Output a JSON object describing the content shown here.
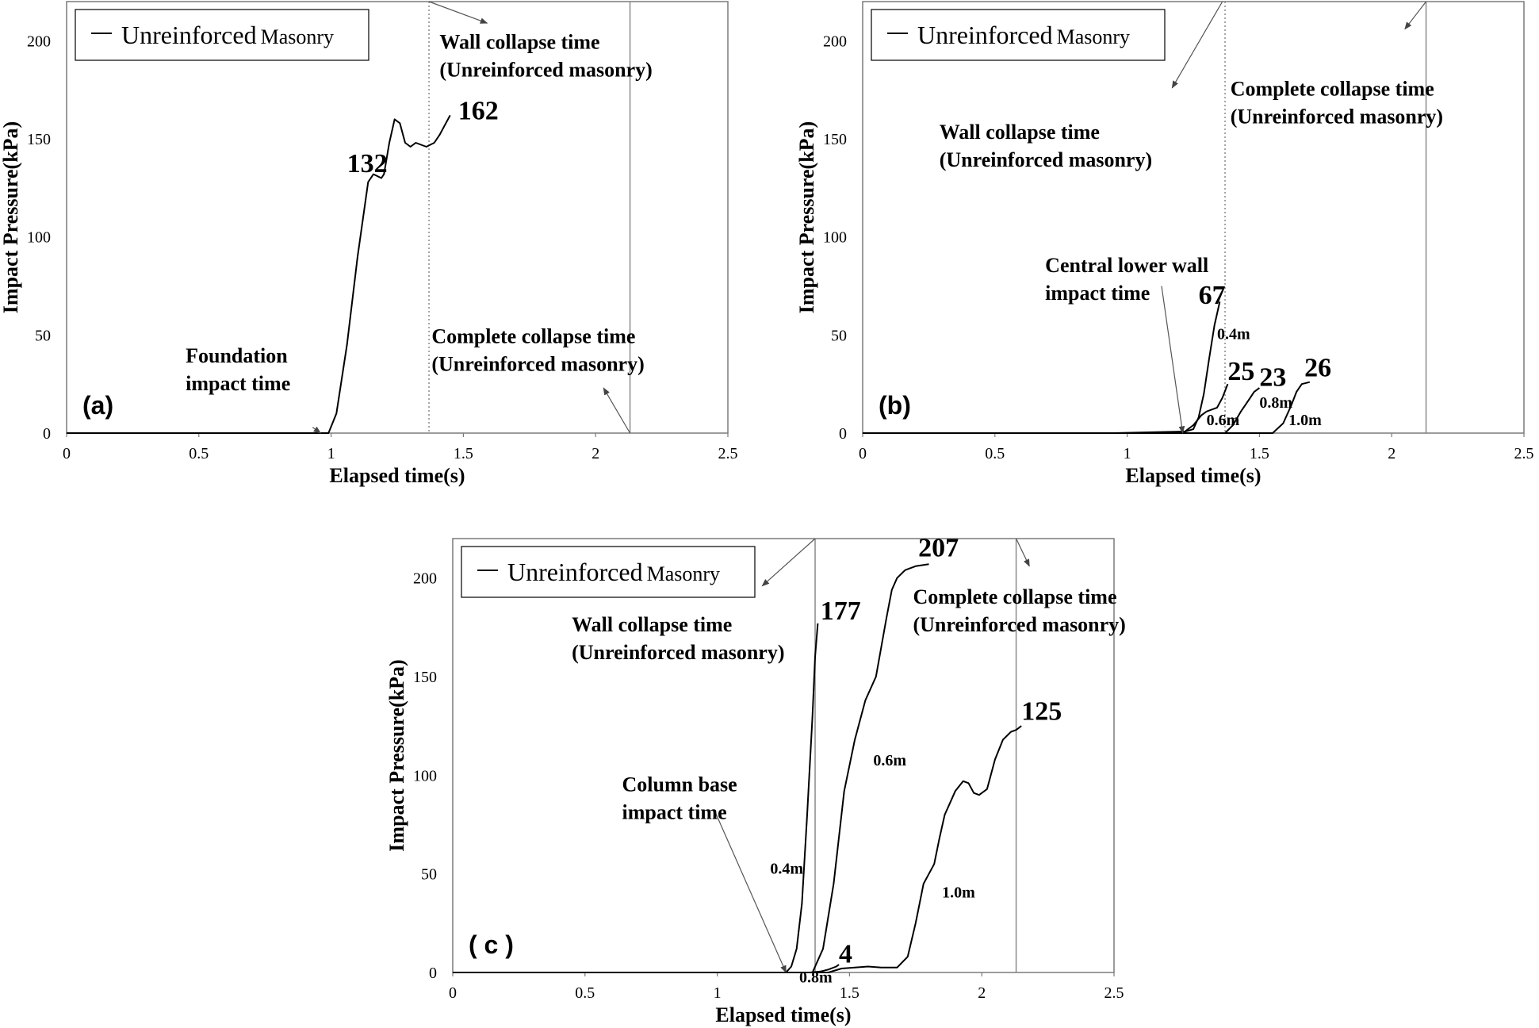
{
  "chart_data": [
    {
      "type": "line",
      "panel": "(a)",
      "xlabel": "Elapsed time(s)",
      "ylabel": "Impact Pressure(kPa)",
      "xlim": [
        0,
        2.5
      ],
      "ylim": [
        0,
        220
      ],
      "xticks": [
        "0",
        "0.5",
        "1",
        "1.5",
        "2",
        "2.5"
      ],
      "yticks": [
        "0",
        "50",
        "100",
        "150",
        "200"
      ],
      "legend": {
        "line1": "Unreinforced",
        "line2": "Masonry",
        "position": "top-left"
      },
      "grid": false,
      "series": [
        {
          "name": "",
          "x": [
            0,
            0.95,
            0.99,
            1.02,
            1.06,
            1.1,
            1.14,
            1.16,
            1.19,
            1.2,
            1.22,
            1.24,
            1.26,
            1.28,
            1.3,
            1.32,
            1.34,
            1.36,
            1.39,
            1.41,
            1.43,
            1.45
          ],
          "y": [
            0,
            0,
            0,
            10,
            45,
            90,
            128,
            132,
            130,
            132,
            148,
            160,
            158,
            148,
            146,
            148,
            147,
            146,
            148,
            152,
            157,
            162
          ]
        }
      ],
      "vlines": [
        {
          "x": 1.37,
          "style": "dotted"
        },
        {
          "x": 2.13,
          "style": "solid"
        }
      ],
      "value_labels": [
        {
          "text": "132",
          "x": 1.06,
          "y": 133
        },
        {
          "text": "162",
          "x": 1.48,
          "y": 160
        }
      ],
      "annotations": [
        {
          "lines": [
            "Wall collapse time",
            "(Unreinforced masonry)"
          ],
          "x": 1.41,
          "y": 196
        },
        {
          "lines": [
            "Foundation",
            "impact time"
          ],
          "x": 0.45,
          "y": 36
        },
        {
          "lines": [
            "Complete collapse time",
            "(Unreinforced masonry)"
          ],
          "x": 1.38,
          "y": 46
        }
      ],
      "arrows": [
        {
          "from": [
            1.37,
            220
          ],
          "to": [
            1.59,
            209
          ]
        },
        {
          "from": [
            0.93,
            3
          ],
          "to": [
            0.96,
            0
          ]
        },
        {
          "from": [
            2.13,
            0
          ],
          "to": [
            2.03,
            23
          ]
        }
      ]
    },
    {
      "type": "line",
      "panel": "(b)",
      "xlabel": "Elapsed time(s)",
      "ylabel": "Impact Pressure(kPa)",
      "xlim": [
        0,
        2.5
      ],
      "ylim": [
        0,
        220
      ],
      "xticks": [
        "0",
        "0.5",
        "1",
        "1.5",
        "2",
        "2.5"
      ],
      "yticks": [
        "0",
        "50",
        "100",
        "150",
        "200"
      ],
      "legend": {
        "line1": "Unreinforced",
        "line2": "Masonry",
        "position": "top-left"
      },
      "grid": false,
      "series": [
        {
          "name": "0.4m",
          "x": [
            0,
            0.95,
            1.15,
            1.22,
            1.25,
            1.27,
            1.29,
            1.31,
            1.33,
            1.35
          ],
          "y": [
            0,
            0,
            0.6,
            0.8,
            2,
            8,
            20,
            38,
            55,
            67
          ]
        },
        {
          "name": "0.6m",
          "x": [
            0,
            1.21,
            1.25,
            1.28,
            1.3,
            1.32,
            1.34,
            1.36,
            1.38
          ],
          "y": [
            0,
            0,
            4,
            9,
            11,
            12,
            13,
            18,
            25
          ]
        },
        {
          "name": "0.8m",
          "x": [
            0,
            1.37,
            1.4,
            1.43,
            1.46,
            1.48,
            1.5
          ],
          "y": [
            0,
            0,
            4,
            11,
            17,
            21,
            23
          ]
        },
        {
          "name": "1.0m",
          "x": [
            0,
            1.55,
            1.59,
            1.62,
            1.64,
            1.66,
            1.69
          ],
          "y": [
            0,
            0,
            5,
            14,
            21,
            25,
            26
          ]
        }
      ],
      "vlines": [
        {
          "x": 1.37,
          "style": "dotted"
        },
        {
          "x": 2.13,
          "style": "solid"
        }
      ],
      "value_labels": [
        {
          "text": "67",
          "x": 1.27,
          "y": 66
        },
        {
          "text": "25",
          "x": 1.38,
          "y": 27
        },
        {
          "text": "23",
          "x": 1.5,
          "y": 24
        },
        {
          "text": "26",
          "x": 1.67,
          "y": 29
        }
      ],
      "series_labels": [
        {
          "text": "0.4m",
          "x": 1.34,
          "y": 48
        },
        {
          "text": "0.6m",
          "x": 1.3,
          "y": 4
        },
        {
          "text": "0.8m",
          "x": 1.5,
          "y": 13
        },
        {
          "text": "1.0m",
          "x": 1.61,
          "y": 4
        }
      ],
      "annotations": [
        {
          "lines": [
            "Wall collapse time",
            "(Unreinforced masonry)"
          ],
          "x": 0.29,
          "y": 150
        },
        {
          "lines": [
            "Complete collapse time",
            "(Unreinforced masonry)"
          ],
          "x": 1.39,
          "y": 172
        },
        {
          "lines": [
            "Central lower wall",
            "impact time"
          ],
          "x": 0.69,
          "y": 82
        }
      ],
      "arrows": [
        {
          "from": [
            1.36,
            220
          ],
          "to": [
            1.17,
            176
          ]
        },
        {
          "from": [
            2.13,
            220
          ],
          "to": [
            2.05,
            206
          ]
        },
        {
          "from": [
            1.13,
            75
          ],
          "to": [
            1.21,
            0
          ]
        }
      ]
    },
    {
      "type": "line",
      "panel": "( c )",
      "xlabel": "Elapsed time(s)",
      "ylabel": "Impact Pressure(kPa)",
      "xlim": [
        0,
        2.5
      ],
      "ylim": [
        0,
        220
      ],
      "xticks": [
        "0",
        "0.5",
        "1",
        "1.5",
        "2",
        "2.5"
      ],
      "yticks": [
        "0",
        "50",
        "100",
        "150",
        "200"
      ],
      "legend": {
        "line1": "Unreinforced",
        "line2": "Masonry",
        "position": "top-left"
      },
      "grid": false,
      "series": [
        {
          "name": "0.4m",
          "x": [
            0,
            1.26,
            1.28,
            1.3,
            1.32,
            1.34,
            1.36,
            1.37,
            1.38
          ],
          "y": [
            0,
            0,
            3,
            12,
            35,
            80,
            130,
            160,
            177
          ]
        },
        {
          "name": "0.6m",
          "x": [
            0,
            1.36,
            1.4,
            1.44,
            1.48,
            1.52,
            1.56,
            1.6,
            1.64,
            1.66,
            1.68,
            1.71,
            1.75,
            1.8
          ],
          "y": [
            0,
            0,
            12,
            45,
            92,
            118,
            138,
            150,
            180,
            194,
            200,
            204,
            206,
            207
          ]
        },
        {
          "name": "0.8m",
          "x": [
            0,
            1.35,
            1.39,
            1.42,
            1.45,
            1.46
          ],
          "y": [
            0,
            0,
            0.5,
            1.5,
            3,
            4
          ]
        },
        {
          "name": "1.0m",
          "x": [
            0,
            1.42,
            1.47,
            1.52,
            1.57,
            1.62,
            1.68,
            1.72,
            1.75,
            1.78,
            1.8,
            1.82,
            1.84,
            1.86,
            1.88,
            1.9,
            1.93,
            1.95,
            1.97,
            1.99,
            2.02,
            2.05,
            2.08,
            2.11,
            2.13,
            2.15
          ],
          "y": [
            0,
            0,
            2,
            2.5,
            3,
            2.5,
            2.5,
            8,
            25,
            45,
            50,
            55,
            68,
            80,
            86,
            92,
            97,
            96,
            91,
            90,
            93,
            108,
            118,
            122,
            123,
            125
          ]
        }
      ],
      "vlines": [
        {
          "x": 1.37,
          "style": "solid"
        },
        {
          "x": 2.13,
          "style": "solid"
        }
      ],
      "value_labels": [
        {
          "text": "177",
          "x": 1.39,
          "y": 179
        },
        {
          "text": "207",
          "x": 1.76,
          "y": 211
        },
        {
          "text": "4",
          "x": 1.46,
          "y": 5
        },
        {
          "text": "125",
          "x": 2.15,
          "y": 128
        }
      ],
      "series_labels": [
        {
          "text": "0.4m",
          "x": 1.2,
          "y": 50
        },
        {
          "text": "0.6m",
          "x": 1.59,
          "y": 105
        },
        {
          "text": "0.8m",
          "x": 1.31,
          "y": -5
        },
        {
          "text": "1.0m",
          "x": 1.85,
          "y": 38
        }
      ],
      "annotations": [
        {
          "lines": [
            "Wall collapse time",
            "(Unreinforced masonry)"
          ],
          "x": 0.45,
          "y": 173
        },
        {
          "lines": [
            "Complete collapse time",
            "(Unreinforced masonry)"
          ],
          "x": 1.74,
          "y": 187
        },
        {
          "lines": [
            "Column base",
            "impact time"
          ],
          "x": 0.64,
          "y": 92
        }
      ],
      "arrows": [
        {
          "from": [
            1.37,
            220
          ],
          "to": [
            1.17,
            196
          ]
        },
        {
          "from": [
            2.13,
            220
          ],
          "to": [
            2.18,
            206
          ]
        },
        {
          "from": [
            0.99,
            82
          ],
          "to": [
            1.26,
            0
          ]
        }
      ]
    }
  ]
}
